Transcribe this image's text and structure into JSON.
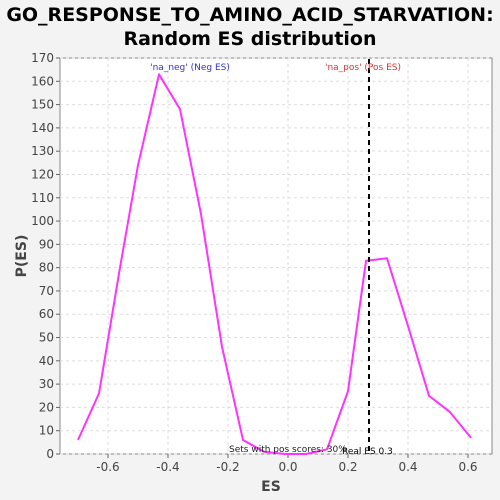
{
  "chart_data": {
    "type": "line",
    "title": "GO_RESPONSE_TO_AMINO_ACID_STARVATION:",
    "subtitle": "Random ES distribution",
    "xlabel": "ES",
    "ylabel": "P(ES)",
    "xlim": [
      -0.76,
      0.68
    ],
    "ylim": [
      0,
      170
    ],
    "xticks": [
      "-0.6",
      "-0.4",
      "-0.2",
      "0.0",
      "0.2",
      "0.4",
      "0.6"
    ],
    "xtick_values": [
      -0.6,
      -0.4,
      -0.2,
      0.0,
      0.2,
      0.4,
      0.6
    ],
    "yticks": [
      "0",
      "10",
      "20",
      "30",
      "40",
      "50",
      "60",
      "70",
      "80",
      "90",
      "100",
      "110",
      "120",
      "130",
      "140",
      "150",
      "160",
      "170"
    ],
    "ytick_values": [
      0,
      10,
      20,
      30,
      40,
      50,
      60,
      70,
      80,
      90,
      100,
      110,
      120,
      130,
      140,
      150,
      160,
      170
    ],
    "grid": true,
    "series": [
      {
        "color": "#ff33ff",
        "x": [
          -0.7,
          -0.63,
          -0.56,
          -0.5,
          -0.43,
          -0.36,
          -0.29,
          -0.22,
          -0.15,
          -0.08,
          -0.01,
          0.06,
          0.13,
          0.2,
          0.26,
          0.33,
          0.4,
          0.47,
          0.54,
          0.61
        ],
        "y": [
          6,
          26,
          80,
          124,
          163,
          148,
          103,
          46,
          6,
          1,
          0,
          0,
          2,
          27,
          83,
          84,
          55,
          25,
          18,
          7
        ]
      }
    ],
    "real_es": {
      "value": 0.27,
      "label": "Real ES 0.3",
      "color": "#000000"
    },
    "annotations": [
      {
        "text": "'na_neg' (Neg ES)",
        "color": "#3333cc"
      },
      {
        "text": "'na_pos' (Pos ES)",
        "color": "#e03030"
      },
      {
        "text": "Sets with pos scores: 30%",
        "color": "#222222"
      }
    ]
  }
}
